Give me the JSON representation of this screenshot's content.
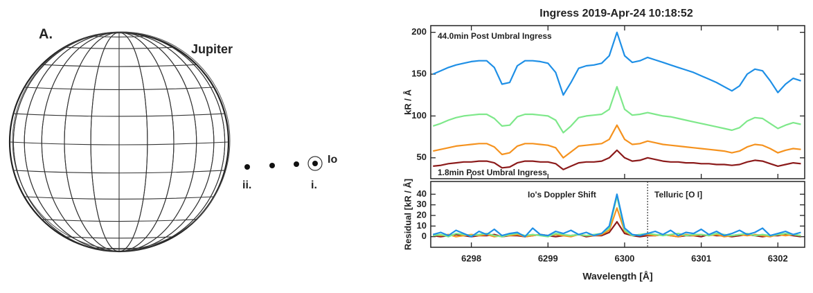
{
  "diagram": {
    "panel_label": "A.",
    "planet": "Jupiter",
    "moon": "Io",
    "positions": [
      "ii.",
      "i."
    ]
  },
  "chart_data": [
    {
      "type": "line",
      "title": "Ingress 2019-Apr-24 10:18:52",
      "ylabel": "kR / Å",
      "xlim": [
        6297.47,
        6302.35
      ],
      "ylim": [
        25,
        208
      ],
      "yticks": [
        50,
        100,
        150,
        200
      ],
      "annotations": [
        {
          "text": "44.0min Post Umbral Ingress",
          "color": "#1e8fe6"
        },
        {
          "text": "1.8min Post Umbral Ingress",
          "color": "#8b1a1a"
        }
      ],
      "x": [
        6297.5,
        6297.6,
        6297.7,
        6297.8,
        6297.9,
        6298.0,
        6298.1,
        6298.2,
        6298.3,
        6298.4,
        6298.5,
        6298.6,
        6298.7,
        6298.8,
        6298.9,
        6299.0,
        6299.1,
        6299.2,
        6299.3,
        6299.4,
        6299.5,
        6299.6,
        6299.7,
        6299.8,
        6299.9,
        6300.0,
        6300.1,
        6300.2,
        6300.3,
        6300.4,
        6300.5,
        6300.6,
        6300.7,
        6300.8,
        6300.9,
        6301.0,
        6301.1,
        6301.2,
        6301.3,
        6301.4,
        6301.5,
        6301.6,
        6301.7,
        6301.8,
        6301.9,
        6302.0,
        6302.1,
        6302.2,
        6302.3
      ],
      "series": [
        {
          "color": "#1e8fe6",
          "values": [
            150,
            154,
            158,
            161,
            163,
            165,
            166,
            166,
            158,
            138,
            140,
            160,
            166,
            166,
            165,
            163,
            152,
            125,
            140,
            157,
            160,
            161,
            163,
            172,
            200,
            172,
            164,
            166,
            170,
            167,
            164,
            161,
            158,
            155,
            152,
            148,
            144,
            140,
            135,
            130,
            136,
            150,
            156,
            154,
            142,
            128,
            138,
            145,
            142
          ]
        },
        {
          "color": "#7ee88a",
          "values": [
            88,
            91,
            95,
            98,
            100,
            101,
            102,
            102,
            97,
            88,
            89,
            99,
            102,
            102,
            101,
            100,
            95,
            80,
            88,
            98,
            100,
            101,
            102,
            108,
            135,
            108,
            101,
            102,
            104,
            102,
            100,
            99,
            97,
            95,
            93,
            91,
            89,
            87,
            85,
            83,
            86,
            94,
            98,
            97,
            91,
            85,
            89,
            92,
            90
          ]
        },
        {
          "color": "#f5921e",
          "values": [
            58,
            60,
            62,
            64,
            65,
            66,
            67,
            67,
            63,
            54,
            56,
            64,
            67,
            67,
            66,
            65,
            62,
            50,
            57,
            64,
            65,
            66,
            67,
            72,
            89,
            72,
            66,
            67,
            70,
            68,
            66,
            65,
            64,
            63,
            62,
            61,
            60,
            59,
            58,
            56,
            58,
            63,
            66,
            65,
            61,
            56,
            59,
            61,
            60
          ]
        },
        {
          "color": "#8b1a1a",
          "values": [
            40,
            41,
            43,
            44,
            45,
            45,
            46,
            46,
            44,
            38,
            39,
            44,
            46,
            46,
            45,
            45,
            43,
            36,
            40,
            44,
            45,
            45,
            46,
            50,
            59,
            50,
            46,
            47,
            50,
            48,
            46,
            45,
            45,
            44,
            44,
            43,
            43,
            42,
            42,
            41,
            42,
            45,
            47,
            46,
            43,
            40,
            42,
            44,
            43
          ]
        }
      ]
    },
    {
      "type": "line",
      "ylabel": "Residual [kR / Å]",
      "xlabel": "Wavelength [Å]",
      "xlim": [
        6297.47,
        6302.35
      ],
      "xticks": [
        6298,
        6299,
        6300,
        6301,
        6302
      ],
      "ylim": [
        -10,
        52
      ],
      "yticks": [
        0,
        10,
        20,
        30,
        40
      ],
      "vline": 6300.3,
      "annotations": [
        {
          "text": "Io's Doppler Shift",
          "color": "#222"
        },
        {
          "text": "Telluric [O I]",
          "color": "#222"
        }
      ],
      "x": [
        6297.5,
        6297.6,
        6297.7,
        6297.8,
        6297.9,
        6298.0,
        6298.1,
        6298.2,
        6298.3,
        6298.4,
        6298.5,
        6298.6,
        6298.7,
        6298.8,
        6298.9,
        6299.0,
        6299.1,
        6299.2,
        6299.3,
        6299.4,
        6299.5,
        6299.6,
        6299.7,
        6299.8,
        6299.9,
        6300.0,
        6300.1,
        6300.2,
        6300.3,
        6300.4,
        6300.5,
        6300.6,
        6300.7,
        6300.8,
        6300.9,
        6301.0,
        6301.1,
        6301.2,
        6301.3,
        6301.4,
        6301.5,
        6301.6,
        6301.7,
        6301.8,
        6301.9,
        6302.0,
        6302.1,
        6302.2,
        6302.3
      ],
      "series": [
        {
          "color": "#8b1a1a",
          "values": [
            1,
            0,
            1,
            2,
            1,
            0,
            1,
            1,
            2,
            0,
            1,
            1,
            0,
            1,
            2,
            1,
            0,
            1,
            1,
            2,
            0,
            1,
            1,
            4,
            14,
            3,
            1,
            0,
            1,
            1,
            2,
            1,
            0,
            1,
            1,
            0,
            2,
            1,
            1,
            0,
            1,
            2,
            1,
            0,
            1,
            1,
            2,
            1,
            0
          ]
        },
        {
          "color": "#f5921e",
          "values": [
            2,
            1,
            2,
            0,
            1,
            2,
            1,
            2,
            0,
            1,
            1,
            2,
            0,
            1,
            2,
            1,
            2,
            1,
            0,
            2,
            1,
            1,
            2,
            6,
            27,
            5,
            1,
            2,
            2,
            1,
            2,
            1,
            0,
            2,
            1,
            2,
            1,
            2,
            0,
            1,
            2,
            1,
            2,
            1,
            0,
            2,
            1,
            2,
            1
          ]
        },
        {
          "color": "#7ee88a",
          "values": [
            1,
            2,
            0,
            3,
            2,
            1,
            2,
            3,
            1,
            0,
            2,
            3,
            1,
            2,
            1,
            0,
            3,
            2,
            1,
            2,
            1,
            2,
            3,
            8,
            38,
            6,
            1,
            2,
            3,
            2,
            1,
            2,
            3,
            1,
            2,
            2,
            1,
            3,
            2,
            1,
            2,
            3,
            1,
            2,
            1,
            2,
            3,
            2,
            1
          ]
        },
        {
          "color": "#1e8fe6",
          "values": [
            2,
            4,
            1,
            6,
            3,
            0,
            5,
            2,
            7,
            1,
            3,
            4,
            0,
            8,
            2,
            1,
            5,
            3,
            6,
            2,
            4,
            1,
            3,
            10,
            40,
            8,
            2,
            1,
            3,
            5,
            2,
            6,
            1,
            4,
            3,
            7,
            2,
            5,
            1,
            3,
            6,
            2,
            4,
            8,
            1,
            3,
            5,
            2,
            4
          ]
        }
      ]
    }
  ]
}
